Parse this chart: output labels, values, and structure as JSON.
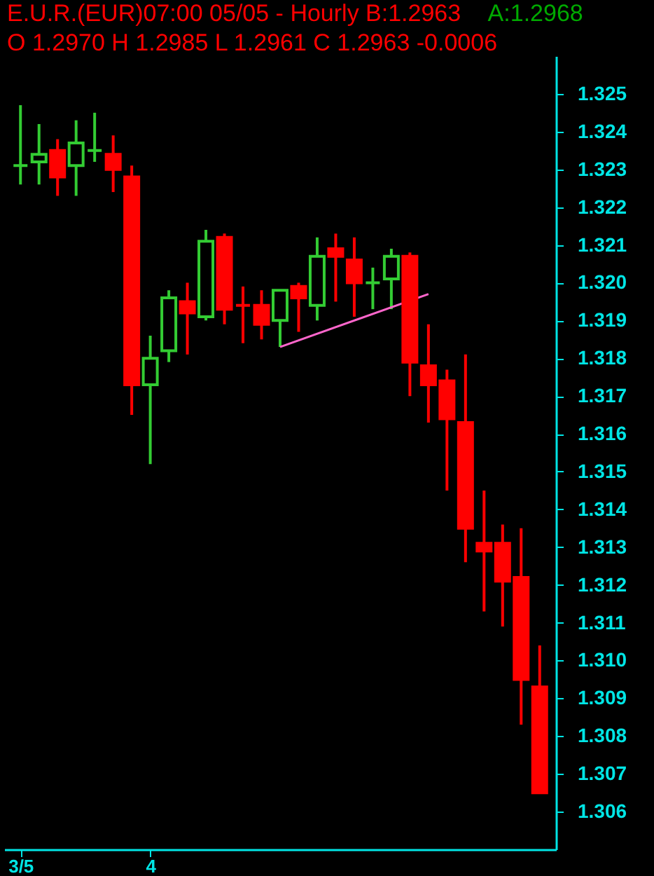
{
  "chart_data": {
    "type": "candlestick",
    "title": "E.U.R.(EUR)07:00 05/05   - Hourly B:1.2963",
    "subtitle": "O 1.2970 H 1.2985 L 1.2961 C 1.2963  -0.0006",
    "annotations": [
      "A:1.2968"
    ],
    "categories": [
      "3/5",
      null,
      null,
      null,
      null,
      null,
      null,
      "4",
      null,
      null,
      null,
      null,
      null,
      null,
      null,
      null,
      null,
      null,
      null,
      null,
      null,
      null,
      null,
      null,
      null,
      null,
      null,
      null,
      null
    ],
    "ohlc": [
      [
        1.3231,
        1.3247,
        1.3226,
        1.3231
      ],
      [
        1.3232,
        1.3242,
        1.3226,
        1.3234
      ],
      [
        1.3235,
        1.3238,
        1.3223,
        1.3228
      ],
      [
        1.3231,
        1.3243,
        1.3223,
        1.3237
      ],
      [
        1.3235,
        1.3245,
        1.3232,
        1.3235
      ],
      [
        1.3234,
        1.3239,
        1.3224,
        1.323
      ],
      [
        1.3228,
        1.3231,
        1.3165,
        1.3173
      ],
      [
        1.3173,
        1.3186,
        1.3152,
        1.318
      ],
      [
        1.3182,
        1.3198,
        1.3179,
        1.3196
      ],
      [
        1.3195,
        1.32,
        1.3181,
        1.3192
      ],
      [
        1.3191,
        1.3214,
        1.319,
        1.3211
      ],
      [
        1.3212,
        1.3213,
        1.3189,
        1.3193
      ],
      [
        1.3194,
        1.3199,
        1.3184,
        1.3194
      ],
      [
        1.3194,
        1.3198,
        1.3185,
        1.3189
      ],
      [
        1.319,
        1.3198,
        1.3183,
        1.3198
      ],
      [
        1.3199,
        1.32,
        1.3187,
        1.3196
      ],
      [
        1.3194,
        1.3212,
        1.319,
        1.3207
      ],
      [
        1.3209,
        1.3213,
        1.3195,
        1.3207
      ],
      [
        1.3206,
        1.3212,
        1.3191,
        1.32
      ],
      [
        1.32,
        1.3204,
        1.3193,
        1.32
      ],
      [
        1.3201,
        1.3209,
        1.3193,
        1.3207
      ],
      [
        1.3207,
        1.3208,
        1.317,
        1.3179
      ],
      [
        1.3178,
        1.3189,
        1.3163,
        1.3173
      ],
      [
        1.3174,
        1.3177,
        1.3145,
        1.3164
      ],
      [
        1.3163,
        1.3181,
        1.3126,
        1.3135
      ],
      [
        1.3131,
        1.3145,
        1.3113,
        1.3129
      ],
      [
        1.3131,
        1.3136,
        1.3109,
        1.3121
      ],
      [
        1.3122,
        1.3135,
        1.3083,
        1.3095
      ],
      [
        1.3093,
        1.3104,
        1.3065,
        1.3065
      ]
    ],
    "colors": [
      "#33cc33",
      "#33cc33",
      "#ff0000",
      "#33cc33",
      "#33cc33",
      "#ff0000",
      "#ff0000",
      "#33cc33",
      "#33cc33",
      "#ff0000",
      "#33cc33",
      "#ff0000",
      "#ff0000",
      "#ff0000",
      "#33cc33",
      "#ff0000",
      "#33cc33",
      "#ff0000",
      "#ff0000",
      "#33cc33",
      "#33cc33",
      "#ff0000",
      "#ff0000",
      "#ff0000",
      "#ff0000",
      "#ff0000",
      "#ff0000",
      "#ff0000",
      "#ff0000"
    ],
    "series": [
      {
        "type": "line",
        "color": "#ff66cc",
        "values": [
          null,
          null,
          null,
          null,
          null,
          null,
          null,
          null,
          null,
          null,
          null,
          null,
          null,
          null,
          1.3183,
          null,
          null,
          null,
          null,
          null,
          null,
          null,
          1.3197,
          null,
          null,
          null,
          null,
          null,
          null
        ]
      }
    ],
    "ylim": [
      1.305,
      1.326
    ],
    "yticks": [
      1.306,
      1.307,
      1.308,
      1.309,
      {
        "value": 1.31,
        "label": "1.310"
      },
      1.311,
      1.312,
      1.313,
      1.314,
      1.315,
      1.316,
      1.317,
      1.318,
      1.319,
      {
        "value": 1.32,
        "label": "1.320"
      },
      1.321,
      1.322,
      1.323,
      1.324,
      1.325
    ],
    "grid": false
  }
}
